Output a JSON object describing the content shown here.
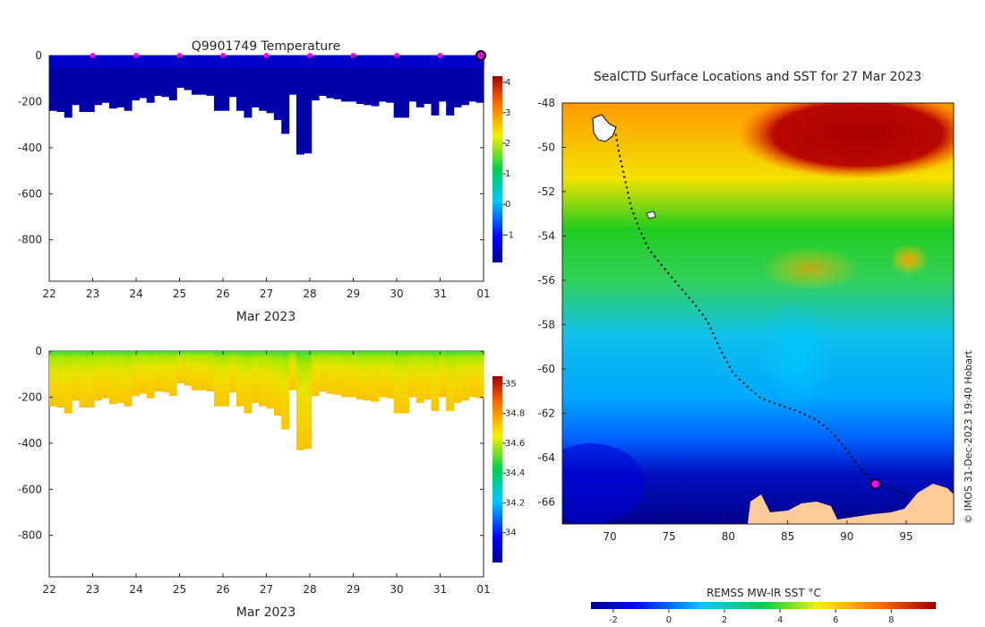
{
  "chart_data": [
    {
      "type": "heatmap",
      "title": "Q9901749  Temperature",
      "xlabel": "Mar 2023",
      "ylabel": "",
      "x_ticks": [
        "22",
        "23",
        "24",
        "25",
        "26",
        "27",
        "28",
        "29",
        "30",
        "31",
        "01"
      ],
      "y_ticks": [
        "0",
        "-200",
        "-400",
        "-600",
        "-800"
      ],
      "xlim": [
        22,
        32
      ],
      "ylim": [
        -980,
        0
      ],
      "colorbar": {
        "ticks": [
          "-1",
          "0",
          "1",
          "2",
          "3",
          "4"
        ],
        "range": [
          -1.9,
          4.2
        ]
      },
      "profile_depths": [
        240,
        245,
        270,
        215,
        245,
        245,
        215,
        205,
        230,
        225,
        240,
        195,
        185,
        205,
        175,
        180,
        195,
        140,
        150,
        170,
        170,
        175,
        240,
        240,
        180,
        240,
        270,
        225,
        240,
        250,
        280,
        340,
        170,
        430,
        425,
        195,
        175,
        185,
        190,
        200,
        200,
        210,
        215,
        220,
        200,
        205,
        270,
        270,
        200,
        225,
        210,
        260,
        200,
        260,
        225,
        215,
        200,
        205
      ],
      "cast_markers_days": [
        23,
        24,
        25,
        26,
        27,
        28,
        29,
        30,
        31
      ],
      "final_marker_day": 32
    },
    {
      "type": "heatmap",
      "title": "",
      "xlabel": "Mar 2023",
      "ylabel": "",
      "x_ticks": [
        "22",
        "23",
        "24",
        "25",
        "26",
        "27",
        "28",
        "29",
        "30",
        "31",
        "01"
      ],
      "y_ticks": [
        "0",
        "-200",
        "-400",
        "-600",
        "-800"
      ],
      "xlim": [
        22,
        32
      ],
      "ylim": [
        -980,
        0
      ],
      "colorbar": {
        "ticks": [
          "34",
          "34.2",
          "34.4",
          "34.6",
          "34.8",
          "35"
        ],
        "range": [
          33.8,
          35.05
        ]
      },
      "profile_depths": [
        240,
        245,
        270,
        215,
        245,
        245,
        215,
        205,
        230,
        225,
        240,
        195,
        185,
        205,
        175,
        180,
        195,
        140,
        150,
        170,
        170,
        175,
        240,
        240,
        180,
        240,
        270,
        225,
        240,
        250,
        280,
        340,
        170,
        430,
        425,
        195,
        175,
        185,
        190,
        200,
        200,
        210,
        215,
        220,
        200,
        205,
        270,
        270,
        200,
        225,
        210,
        260,
        200,
        260,
        225,
        215,
        200,
        205
      ]
    },
    {
      "type": "heatmap",
      "title": "SealCTD Surface Locations and SST for 27 Mar 2023",
      "xlabel": "",
      "ylabel": "",
      "x_ticks": [
        "70",
        "75",
        "80",
        "85",
        "90",
        "95"
      ],
      "y_ticks": [
        "-48",
        "-50",
        "-52",
        "-54",
        "-56",
        "-58",
        "-60",
        "-62",
        "-64",
        "-66"
      ],
      "xlim": [
        66,
        99
      ],
      "ylim": [
        -67,
        -48
      ],
      "colorbar": {
        "label": "REMSS MW-IR SST °C",
        "ticks": [
          "-2",
          "0",
          "2",
          "4",
          "6",
          "8"
        ],
        "range": [
          -2.8,
          9.6
        ]
      },
      "track": [
        [
          70.5,
          -49.4
        ],
        [
          70.8,
          -50.3
        ],
        [
          71.3,
          -51.5
        ],
        [
          71.8,
          -52.7
        ],
        [
          72.5,
          -53.7
        ],
        [
          73.3,
          -54.6
        ],
        [
          74.5,
          -55.4
        ],
        [
          75.9,
          -56.3
        ],
        [
          77.2,
          -57.1
        ],
        [
          78.3,
          -57.9
        ],
        [
          79.2,
          -59.0
        ],
        [
          80.4,
          -60.2
        ],
        [
          81.6,
          -60.8
        ],
        [
          82.7,
          -61.3
        ],
        [
          84.1,
          -61.6
        ],
        [
          85.8,
          -61.9
        ],
        [
          87.4,
          -62.3
        ],
        [
          88.6,
          -62.8
        ],
        [
          89.6,
          -63.4
        ],
        [
          90.6,
          -64.1
        ],
        [
          91.5,
          -64.7
        ],
        [
          92.2,
          -65.2
        ],
        [
          93.6,
          -65.4
        ],
        [
          95.3,
          -65.7
        ]
      ],
      "final_position": [
        92.4,
        -65.2
      ],
      "credit": "© IMOS 31-Dec-2023 19:40 Hobart"
    }
  ]
}
